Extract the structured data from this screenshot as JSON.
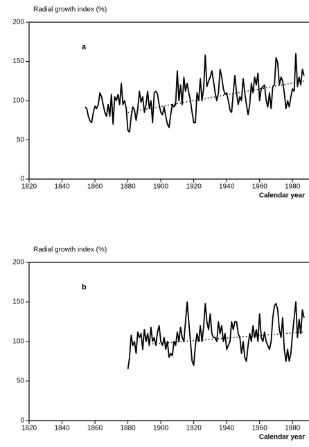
{
  "chart_data": [
    {
      "type": "line",
      "title": "Radial growth index (%)",
      "annotation": "a",
      "x_label": "Calendar year",
      "xlim": [
        1820,
        1990
      ],
      "xticks": [
        1820,
        1840,
        1860,
        1880,
        1900,
        1920,
        1940,
        1960,
        1980
      ],
      "ylim": [
        0,
        200
      ],
      "yticks": [
        0,
        50,
        100,
        150,
        200
      ],
      "series": [
        {
          "color": "#000000",
          "x": [
            1854,
            1855,
            1856,
            1857,
            1858,
            1859,
            1860,
            1861,
            1862,
            1863,
            1864,
            1865,
            1866,
            1867,
            1868,
            1869,
            1870,
            1871,
            1872,
            1873,
            1874,
            1875,
            1876,
            1877,
            1878,
            1879,
            1880,
            1881,
            1882,
            1883,
            1884,
            1885,
            1886,
            1887,
            1888,
            1889,
            1890,
            1891,
            1892,
            1893,
            1894,
            1895,
            1896,
            1897,
            1898,
            1899,
            1900,
            1901,
            1902,
            1903,
            1904,
            1905,
            1906,
            1907,
            1908,
            1909,
            1910,
            1911,
            1912,
            1913,
            1914,
            1915,
            1916,
            1917,
            1918,
            1919,
            1920,
            1921,
            1922,
            1923,
            1924,
            1925,
            1926,
            1927,
            1928,
            1929,
            1930,
            1931,
            1932,
            1933,
            1934,
            1935,
            1936,
            1937,
            1938,
            1939,
            1940,
            1941,
            1942,
            1943,
            1944,
            1945,
            1946,
            1947,
            1948,
            1949,
            1950,
            1951,
            1952,
            1953,
            1954,
            1955,
            1956,
            1957,
            1958,
            1959,
            1960,
            1961,
            1962,
            1963,
            1964,
            1965,
            1966,
            1967,
            1968,
            1969,
            1970,
            1971,
            1972,
            1973,
            1974,
            1975,
            1976,
            1977,
            1978,
            1979,
            1980,
            1981,
            1982,
            1983,
            1984,
            1985,
            1986,
            1987
          ],
          "values": [
            92,
            90,
            80,
            74,
            72,
            85,
            93,
            90,
            95,
            110,
            105,
            95,
            85,
            80,
            95,
            80,
            108,
            70,
            105,
            100,
            108,
            95,
            122,
            95,
            100,
            90,
            62,
            60,
            80,
            92,
            88,
            75,
            90,
            112,
            98,
            105,
            85,
            95,
            112,
            90,
            100,
            72,
            110,
            112,
            108,
            95,
            85,
            82,
            92,
            80,
            70,
            66,
            82,
            95,
            92,
            95,
            138,
            100,
            120,
            95,
            130,
            112,
            122,
            110,
            100,
            85,
            72,
            72,
            110,
            100,
            128,
            100,
            115,
            158,
            118,
            125,
            130,
            138,
            125,
            110,
            100,
            110,
            140,
            130,
            115,
            108,
            110,
            100,
            88,
            85,
            110,
            132,
            110,
            95,
            105,
            100,
            128,
            110,
            95,
            82,
            95,
            122,
            110,
            130,
            120,
            135,
            100,
            115,
            118,
            120,
            100,
            92,
            110,
            90,
            118,
            120,
            155,
            148,
            120,
            130,
            125,
            110,
            90,
            100,
            92,
            105,
            115,
            112,
            160,
            118,
            130,
            120,
            140,
            132
          ]
        }
      ],
      "trend": {
        "x": [
          1880,
          1987
        ],
        "values": [
          85,
          125
        ]
      }
    },
    {
      "type": "line",
      "title": "Radial growth index (%)",
      "annotation": "b",
      "x_label": "Calendar year",
      "xlim": [
        1820,
        1990
      ],
      "xticks": [
        1820,
        1840,
        1860,
        1880,
        1900,
        1920,
        1940,
        1960,
        1980
      ],
      "ylim": [
        0,
        200
      ],
      "yticks": [
        0,
        50,
        100,
        150,
        200
      ],
      "series": [
        {
          "color": "#000000",
          "x": [
            1880,
            1881,
            1882,
            1883,
            1884,
            1885,
            1886,
            1887,
            1888,
            1889,
            1890,
            1891,
            1892,
            1893,
            1894,
            1895,
            1896,
            1897,
            1898,
            1899,
            1900,
            1901,
            1902,
            1903,
            1904,
            1905,
            1906,
            1907,
            1908,
            1909,
            1910,
            1911,
            1912,
            1913,
            1914,
            1915,
            1916,
            1917,
            1918,
            1919,
            1920,
            1921,
            1922,
            1923,
            1924,
            1925,
            1926,
            1927,
            1928,
            1929,
            1930,
            1931,
            1932,
            1933,
            1934,
            1935,
            1936,
            1937,
            1938,
            1939,
            1940,
            1941,
            1942,
            1943,
            1944,
            1945,
            1946,
            1947,
            1948,
            1949,
            1950,
            1951,
            1952,
            1953,
            1954,
            1955,
            1956,
            1957,
            1958,
            1959,
            1960,
            1961,
            1962,
            1963,
            1964,
            1965,
            1966,
            1967,
            1968,
            1969,
            1970,
            1971,
            1972,
            1973,
            1974,
            1975,
            1976,
            1977,
            1978,
            1979,
            1980,
            1981,
            1982,
            1983,
            1984,
            1985,
            1986,
            1987
          ],
          "values": [
            65,
            80,
            108,
            95,
            100,
            85,
            112,
            105,
            110,
            90,
            115,
            100,
            110,
            95,
            118,
            100,
            105,
            95,
            112,
            120,
            100,
            95,
            105,
            90,
            100,
            80,
            85,
            82,
            100,
            95,
            112,
            100,
            118,
            105,
            100,
            125,
            150,
            125,
            100,
            75,
            70,
            95,
            110,
            100,
            120,
            100,
            118,
            148,
            125,
            115,
            135,
            110,
            105,
            105,
            100,
            125,
            110,
            120,
            100,
            110,
            90,
            95,
            100,
            125,
            115,
            125,
            125,
            110,
            105,
            85,
            100,
            80,
            75,
            95,
            110,
            100,
            120,
            105,
            115,
            100,
            135,
            105,
            100,
            112,
            100,
            95,
            90,
            100,
            130,
            145,
            148,
            140,
            115,
            105,
            130,
            90,
            75,
            90,
            75,
            85,
            110,
            130,
            150,
            105,
            128,
            110,
            140,
            130
          ]
        }
      ],
      "trend": {
        "x": [
          1895,
          1987
        ],
        "values": [
          97,
          112
        ]
      }
    }
  ]
}
